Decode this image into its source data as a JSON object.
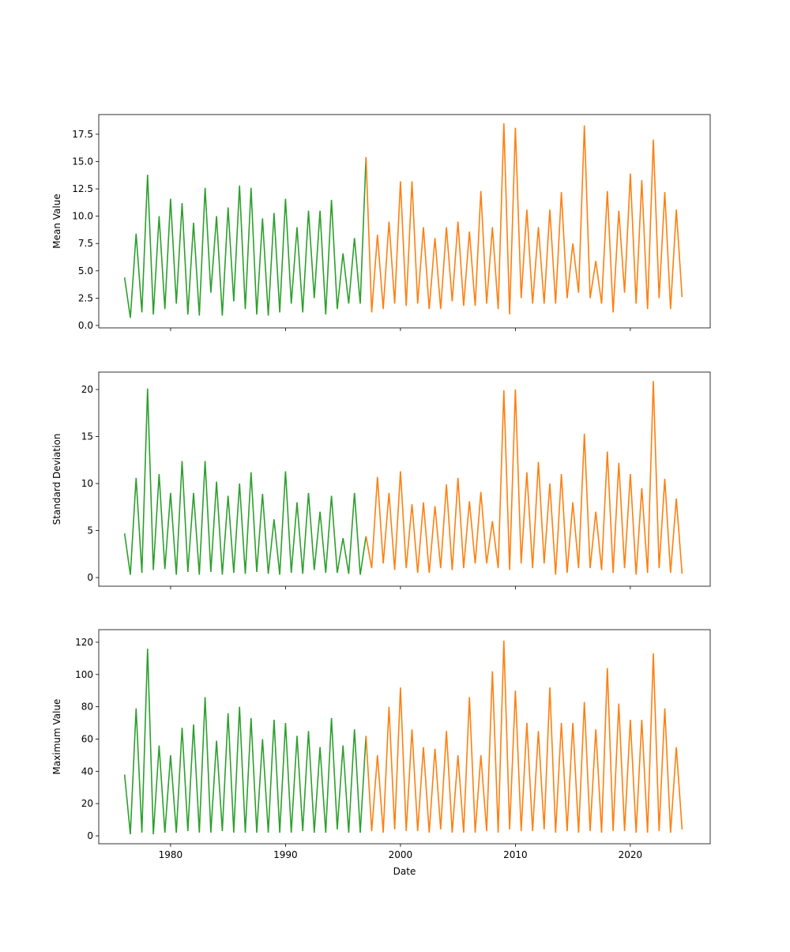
{
  "chart_data": {
    "type": "line",
    "x_label": "Date",
    "x_start": 1976.0,
    "x_step": 0.5,
    "xlim": [
      1973.75,
      2026.95
    ],
    "x_ticks": [
      1980,
      1990,
      2000,
      2010,
      2020
    ],
    "split_index": 42,
    "series_colors": {
      "first": "#2ca02c",
      "second": "#ff7f0e"
    },
    "panels": [
      {
        "ylabel": "Mean Value",
        "ylim": [
          -0.22,
          19.3
        ],
        "y_ticks": [
          0,
          2.5,
          5,
          7.5,
          10,
          12.5,
          15,
          17.5
        ],
        "y_tick_labels": [
          "0.0",
          "2.5",
          "5.0",
          "7.5",
          "10.0",
          "12.5",
          "15.0",
          "17.5"
        ],
        "values": [
          4.4,
          0.7,
          8.4,
          1.2,
          13.8,
          1.0,
          10.0,
          1.5,
          11.6,
          2.0,
          11.2,
          1.0,
          9.4,
          0.9,
          12.6,
          3.0,
          10.0,
          0.9,
          10.8,
          2.2,
          12.8,
          1.5,
          12.6,
          1.0,
          9.8,
          0.9,
          10.3,
          1.2,
          11.6,
          2.0,
          9.0,
          1.2,
          10.5,
          2.5,
          10.5,
          1.0,
          11.5,
          1.5,
          6.6,
          2.0,
          8.0,
          2.0,
          15.4,
          1.2,
          8.3,
          1.5,
          9.5,
          2.0,
          13.2,
          1.8,
          13.2,
          2.0,
          9.0,
          1.5,
          8.0,
          1.5,
          9.0,
          2.2,
          9.5,
          1.8,
          8.6,
          1.8,
          12.3,
          2.0,
          9.0,
          1.5,
          18.5,
          1.0,
          18.1,
          2.5,
          10.6,
          2.0,
          9.0,
          2.0,
          10.6,
          2.0,
          12.2,
          2.5,
          7.5,
          3.0,
          18.3,
          2.5,
          5.9,
          2.0,
          12.3,
          1.2,
          10.5,
          3.0,
          13.9,
          2.0,
          13.3,
          1.5,
          17.0,
          2.5,
          12.2,
          1.5,
          10.6,
          2.6
        ]
      },
      {
        "ylabel": "Standard Deviation",
        "ylim": [
          -0.92,
          21.85
        ],
        "y_ticks": [
          0,
          5,
          10,
          15,
          20
        ],
        "y_tick_labels": [
          "0",
          "5",
          "10",
          "15",
          "20"
        ],
        "values": [
          4.7,
          0.3,
          10.6,
          0.5,
          20.1,
          0.8,
          11.0,
          0.9,
          9.0,
          0.3,
          12.4,
          0.6,
          9.0,
          0.3,
          12.4,
          0.6,
          10.2,
          0.3,
          8.7,
          0.5,
          10.0,
          0.4,
          11.2,
          0.6,
          8.9,
          0.4,
          6.2,
          0.3,
          11.3,
          0.5,
          8.0,
          0.4,
          9.0,
          0.8,
          7.0,
          0.5,
          8.7,
          0.5,
          4.2,
          0.4,
          9.0,
          0.3,
          4.4,
          1.0,
          10.7,
          1.5,
          9.0,
          0.8,
          11.3,
          1.0,
          7.8,
          0.5,
          8.0,
          0.5,
          7.6,
          1.0,
          9.9,
          0.8,
          10.6,
          1.0,
          8.1,
          1.5,
          9.1,
          1.5,
          6.0,
          1.0,
          19.9,
          0.8,
          20.0,
          1.5,
          11.2,
          1.0,
          12.3,
          1.5,
          10.0,
          0.3,
          11.0,
          0.5,
          8.0,
          1.0,
          15.3,
          1.0,
          7.0,
          0.8,
          13.4,
          0.5,
          12.2,
          1.0,
          11.0,
          0.3,
          9.5,
          0.5,
          20.9,
          1.0,
          10.5,
          0.5,
          8.4,
          0.4
        ]
      },
      {
        "ylabel": "Maximum Value",
        "ylim": [
          -4.9,
          127.8
        ],
        "y_ticks": [
          0,
          20,
          40,
          60,
          80,
          100,
          120
        ],
        "y_tick_labels": [
          "0",
          "20",
          "40",
          "60",
          "80",
          "100",
          "120"
        ],
        "values": [
          38,
          1,
          79,
          2,
          116,
          1,
          56,
          2,
          50,
          2,
          67,
          3,
          69,
          2,
          86,
          2,
          59,
          3,
          76,
          2,
          80,
          2,
          73,
          2,
          60,
          2,
          72,
          2,
          70,
          2,
          62,
          3,
          65,
          2,
          55,
          2,
          73,
          4,
          56,
          2,
          66,
          2,
          62,
          3,
          50,
          2,
          80,
          4,
          92,
          3,
          66,
          3,
          55,
          2,
          54,
          4,
          65,
          2,
          50,
          2,
          86,
          2,
          50,
          3,
          102,
          2,
          121,
          4,
          90,
          3,
          70,
          3,
          65,
          4,
          92,
          2,
          70,
          3,
          70,
          2,
          83,
          3,
          66,
          2,
          104,
          3,
          82,
          3,
          72,
          2,
          72,
          2,
          113,
          3,
          79,
          2,
          55,
          4
        ]
      }
    ]
  }
}
